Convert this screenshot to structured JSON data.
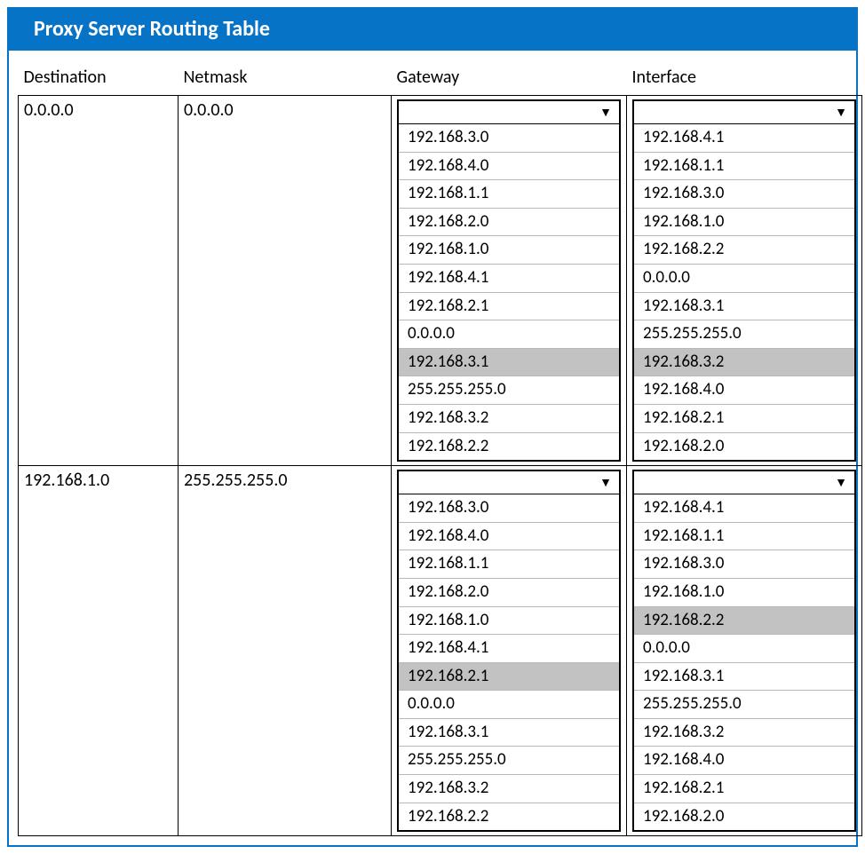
{
  "title": "Proxy Server Routing Table",
  "colors": {
    "accent": "#0673c6",
    "border": "#000000",
    "option_divider": "#b8b8b8",
    "highlight": "#c2c2c2",
    "background": "#ffffff",
    "text": "#000000"
  },
  "columns": {
    "destination": "Destination",
    "netmask": "Netmask",
    "gateway": "Gateway",
    "interface": "Interface"
  },
  "rows": [
    {
      "destination": "0.0.0.0",
      "netmask": "0.0.0.0",
      "gateway": {
        "selected_value": "",
        "highlighted_index": 8,
        "options": [
          "192.168.3.0",
          "192.168.4.0",
          "192.168.1.1",
          "192.168.2.0",
          "192.168.1.0",
          "192.168.4.1",
          "192.168.2.1",
          "0.0.0.0",
          "192.168.3.1",
          "255.255.255.0",
          "192.168.3.2",
          "192.168.2.2"
        ]
      },
      "interface": {
        "selected_value": "",
        "highlighted_index": 8,
        "options": [
          "192.168.4.1",
          "192.168.1.1",
          "192.168.3.0",
          "192.168.1.0",
          "192.168.2.2",
          "0.0.0.0",
          "192.168.3.1",
          "255.255.255.0",
          "192.168.3.2",
          "192.168.4.0",
          "192.168.2.1",
          "192.168.2.0"
        ]
      }
    },
    {
      "destination": "192.168.1.0",
      "netmask": "255.255.255.0",
      "gateway": {
        "selected_value": "",
        "highlighted_index": 6,
        "options": [
          "192.168.3.0",
          "192.168.4.0",
          "192.168.1.1",
          "192.168.2.0",
          "192.168.1.0",
          "192.168.4.1",
          "192.168.2.1",
          "0.0.0.0",
          "192.168.3.1",
          "255.255.255.0",
          "192.168.3.2",
          "192.168.2.2"
        ]
      },
      "interface": {
        "selected_value": "",
        "highlighted_index": 4,
        "options": [
          "192.168.4.1",
          "192.168.1.1",
          "192.168.3.0",
          "192.168.1.0",
          "192.168.2.2",
          "0.0.0.0",
          "192.168.3.1",
          "255.255.255.0",
          "192.168.3.2",
          "192.168.4.0",
          "192.168.2.1",
          "192.168.2.0"
        ]
      }
    }
  ]
}
